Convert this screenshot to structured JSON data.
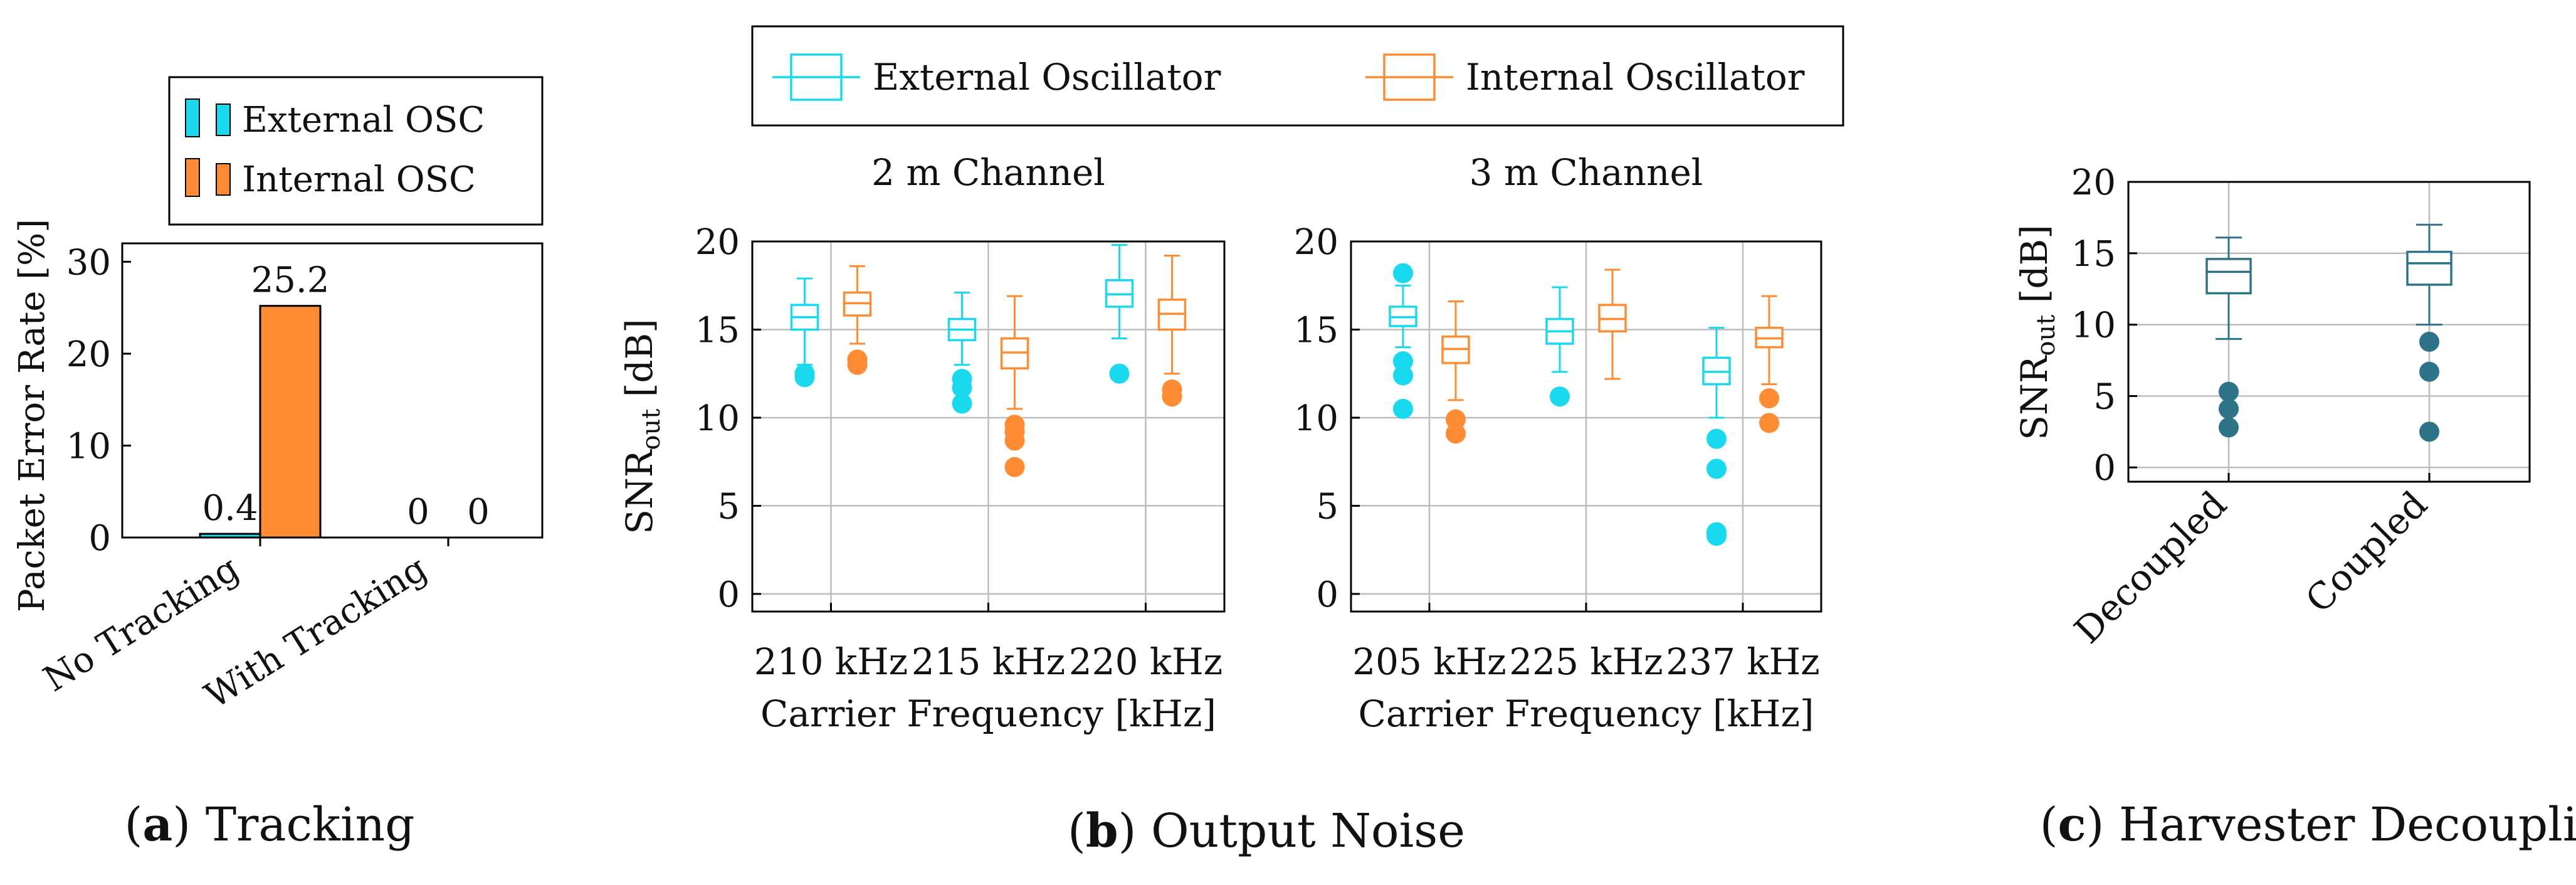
{
  "colors": {
    "external": "#19D9EF",
    "internal": "#FF8C33",
    "harvester": "#2E7489",
    "grid": "#BDBDBD",
    "axis": "#000000"
  },
  "panels": {
    "a": {
      "letter": "a",
      "caption": "Tracking"
    },
    "b": {
      "letter": "b",
      "caption": "Output Noise"
    },
    "c": {
      "letter": "c",
      "caption": "Harvester Decoupling"
    }
  },
  "legend_b": {
    "external": "External Oscillator",
    "internal": "Internal Oscillator"
  },
  "chart_data": [
    {
      "id": "tracking",
      "type": "bar",
      "title": "",
      "ylabel": "Packet Error Rate [%]",
      "xlabel": "",
      "ylim": [
        0,
        32
      ],
      "yticks": [
        0,
        10,
        20,
        30
      ],
      "categories": [
        "No Tracking",
        "With Tracking"
      ],
      "legend": [
        "External OSC",
        "Internal OSC"
      ],
      "legend_position": "top",
      "series": [
        {
          "name": "External OSC",
          "values": [
            0.4,
            0
          ],
          "labels": [
            "0.4",
            "0"
          ]
        },
        {
          "name": "Internal OSC",
          "values": [
            25.2,
            0
          ],
          "labels": [
            "25.2",
            "0"
          ]
        }
      ]
    },
    {
      "id": "noise_2m",
      "type": "box",
      "title": "2 m Channel",
      "ylabel": "SNR",
      "ylabel_sub": "out",
      "ylabel_unit": " [dB]",
      "xlabel": "Carrier Frequency [kHz]",
      "ylim": [
        -1,
        20
      ],
      "yticks": [
        0,
        5,
        10,
        15,
        20
      ],
      "categories": [
        "210 kHz",
        "215 kHz",
        "220 kHz"
      ],
      "series": [
        {
          "name": "External Oscillator",
          "boxes": [
            {
              "low": 13.0,
              "q1": 15.0,
              "median": 15.7,
              "q3": 16.4,
              "high": 17.9,
              "outliers": [
                12.5,
                12.3
              ]
            },
            {
              "low": 13.0,
              "q1": 14.4,
              "median": 15.0,
              "q3": 15.6,
              "high": 17.1,
              "outliers": [
                12.2,
                11.7,
                10.8
              ]
            },
            {
              "low": 14.5,
              "q1": 16.3,
              "median": 17.0,
              "q3": 17.8,
              "high": 19.8,
              "outliers": [
                12.5
              ]
            }
          ]
        },
        {
          "name": "Internal Oscillator",
          "boxes": [
            {
              "low": 14.2,
              "q1": 15.8,
              "median": 16.5,
              "q3": 17.1,
              "high": 18.6,
              "outliers": [
                13.3,
                13.0
              ]
            },
            {
              "low": 10.5,
              "q1": 12.8,
              "median": 13.7,
              "q3": 14.5,
              "high": 16.9,
              "outliers": [
                9.6,
                9.2,
                8.7,
                7.2
              ]
            },
            {
              "low": 12.5,
              "q1": 15.0,
              "median": 15.9,
              "q3": 16.7,
              "high": 19.2,
              "outliers": [
                11.6,
                11.2
              ]
            }
          ]
        }
      ]
    },
    {
      "id": "noise_3m",
      "type": "box",
      "title": "3 m Channel",
      "ylabel": "",
      "xlabel": "Carrier Frequency [kHz]",
      "ylim": [
        -1,
        20
      ],
      "yticks": [
        0,
        5,
        10,
        15,
        20
      ],
      "categories": [
        "205 kHz",
        "225 kHz",
        "237 kHz"
      ],
      "series": [
        {
          "name": "External Oscillator",
          "boxes": [
            {
              "low": 14.0,
              "q1": 15.2,
              "median": 15.7,
              "q3": 16.3,
              "high": 17.5,
              "outliers": [
                18.2,
                13.2,
                12.4,
                10.5
              ]
            },
            {
              "low": 12.6,
              "q1": 14.2,
              "median": 14.9,
              "q3": 15.6,
              "high": 17.4,
              "outliers": [
                11.2
              ]
            },
            {
              "low": 10.0,
              "q1": 11.9,
              "median": 12.6,
              "q3": 13.4,
              "high": 15.1,
              "outliers": [
                8.8,
                7.1,
                3.5,
                3.3
              ]
            }
          ]
        },
        {
          "name": "Internal Oscillator",
          "boxes": [
            {
              "low": 11.0,
              "q1": 13.1,
              "median": 13.9,
              "q3": 14.6,
              "high": 16.6,
              "outliers": [
                9.9,
                9.1
              ]
            },
            {
              "low": 12.2,
              "q1": 14.9,
              "median": 15.6,
              "q3": 16.4,
              "high": 18.4,
              "outliers": []
            },
            {
              "low": 11.9,
              "q1": 14.0,
              "median": 14.5,
              "q3": 15.1,
              "high": 16.9,
              "outliers": [
                11.1,
                9.7
              ]
            }
          ]
        }
      ]
    },
    {
      "id": "harvester",
      "type": "box",
      "title": "",
      "ylabel": "SNR",
      "ylabel_sub": "out",
      "ylabel_unit": " [dB]",
      "xlabel": "",
      "ylim": [
        -1,
        20
      ],
      "yticks": [
        0,
        5,
        10,
        15,
        20
      ],
      "categories": [
        "Decoupled",
        "Coupled"
      ],
      "series": [
        {
          "name": "Harvester",
          "boxes": [
            {
              "low": 9.0,
              "q1": 12.2,
              "median": 13.7,
              "q3": 14.6,
              "high": 16.1,
              "outliers": [
                5.3,
                4.1,
                2.8
              ]
            },
            {
              "low": 10.0,
              "q1": 12.8,
              "median": 14.3,
              "q3": 15.1,
              "high": 17.0,
              "outliers": [
                8.8,
                6.7,
                2.5
              ]
            }
          ]
        }
      ]
    }
  ]
}
